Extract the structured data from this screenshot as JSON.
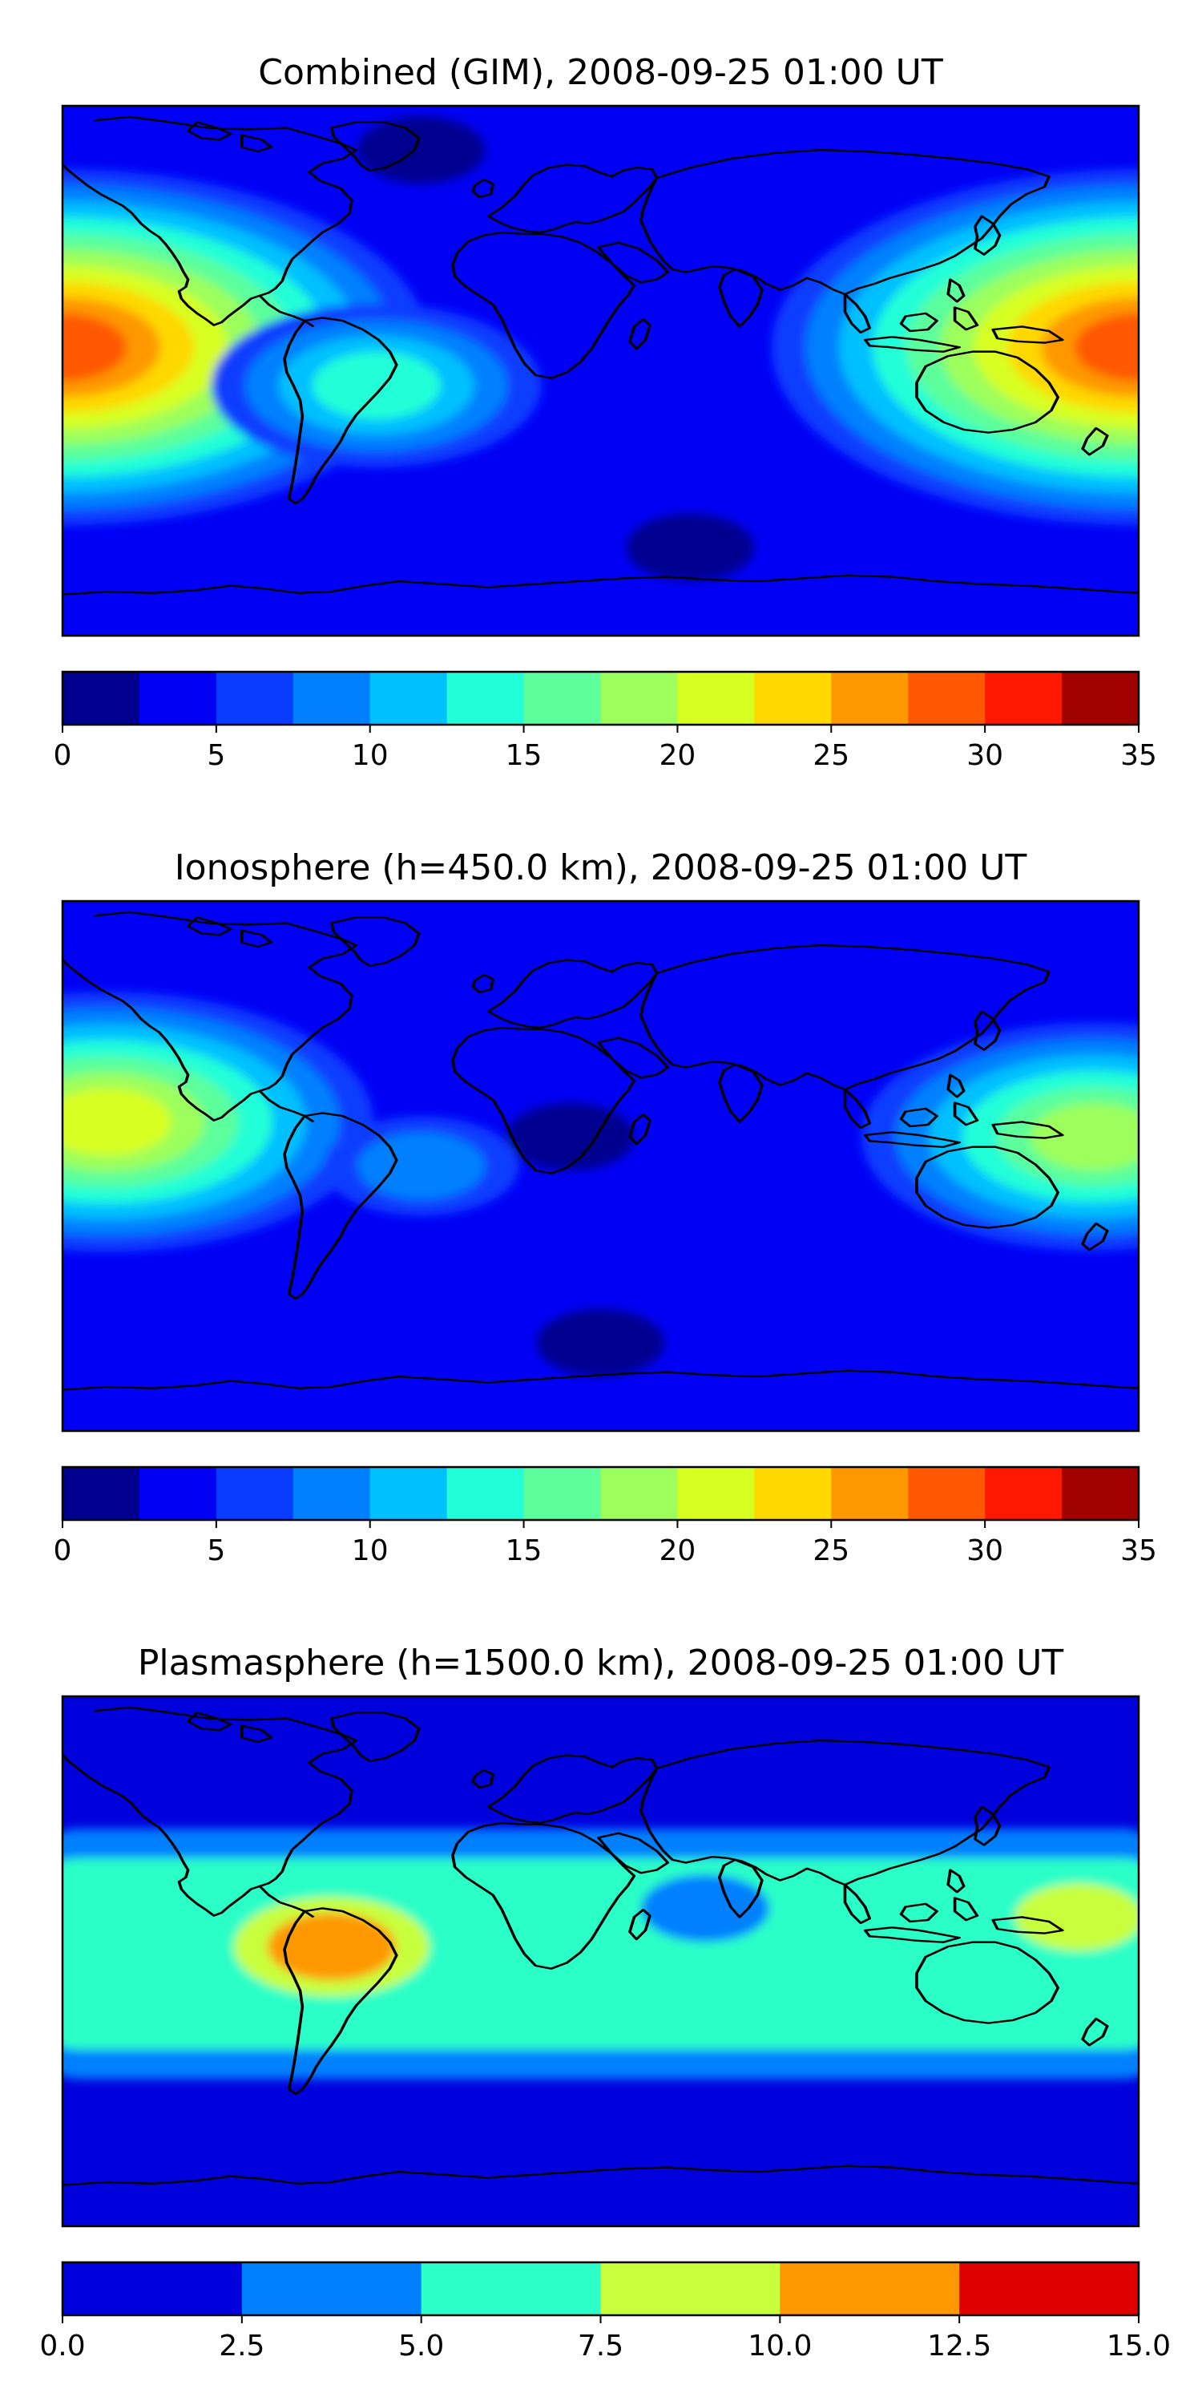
{
  "panels": [
    {
      "id": "combined",
      "title": "Combined (GIM), 2008-09-25 01:00 UT",
      "colorbar": {
        "ticks": [
          "0",
          "5",
          "10",
          "15",
          "20",
          "25",
          "30",
          "35"
        ],
        "tick_values": [
          0,
          5,
          10,
          15,
          20,
          25,
          30,
          35
        ],
        "range": [
          0,
          35
        ],
        "levels": [
          0,
          2.5,
          5,
          7.5,
          10,
          12.5,
          15,
          17.5,
          20,
          22.5,
          25,
          27.5,
          30,
          32.5,
          35
        ],
        "colors": [
          "#00008f",
          "#0000f5",
          "#0a3cff",
          "#0080ff",
          "#00c0ff",
          "#22ffd8",
          "#5cff9c",
          "#9cff5c",
          "#d8ff22",
          "#ffd800",
          "#ff9800",
          "#ff5800",
          "#ff1800",
          "#9f0000"
        ]
      },
      "field": {
        "background_level": 1,
        "blobs": [
          {
            "lon": -180,
            "lat": 8,
            "levels": [
              2,
              3,
              4,
              5,
              6,
              7,
              8,
              9,
              10,
              11
            ]
          },
          {
            "lon": 180,
            "lat": 8,
            "levels": [
              2,
              3,
              4,
              5,
              6,
              7,
              8,
              9,
              10,
              11
            ]
          },
          {
            "lon": -75,
            "lat": -5,
            "levels": [
              2,
              3,
              4,
              5
            ]
          },
          {
            "lon": 30,
            "lat": -60,
            "levels": [
              0
            ]
          },
          {
            "lon": -60,
            "lat": 75,
            "levels": [
              0
            ]
          }
        ]
      }
    },
    {
      "id": "ionosphere",
      "title": "Ionosphere  (h=450.0 km), 2008-09-25 01:00 UT",
      "colorbar": {
        "ticks": [
          "0",
          "5",
          "10",
          "15",
          "20",
          "25",
          "30",
          "35"
        ],
        "tick_values": [
          0,
          5,
          10,
          15,
          20,
          25,
          30,
          35
        ],
        "range": [
          0,
          35
        ],
        "levels": [
          0,
          2.5,
          5,
          7.5,
          10,
          12.5,
          15,
          17.5,
          20,
          22.5,
          25,
          27.5,
          30,
          32.5,
          35
        ],
        "colors": [
          "#00008f",
          "#0000f5",
          "#0a3cff",
          "#0080ff",
          "#00c0ff",
          "#22ffd8",
          "#5cff9c",
          "#9cff5c",
          "#d8ff22",
          "#ffd800",
          "#ff9800",
          "#ff5800",
          "#ff1800",
          "#9f0000"
        ]
      },
      "field": {
        "background_level": 1,
        "blobs": [
          {
            "lon": -10,
            "lat": 10,
            "levels": [
              0
            ]
          },
          {
            "lon": -165,
            "lat": 15,
            "levels": [
              2,
              3,
              4,
              5,
              6,
              7,
              8
            ]
          },
          {
            "lon": 165,
            "lat": 10,
            "levels": [
              2,
              3,
              4,
              5,
              6,
              7
            ]
          },
          {
            "lon": -60,
            "lat": 0,
            "levels": [
              2,
              3
            ]
          },
          {
            "lon": 0,
            "lat": -60,
            "levels": [
              0
            ]
          }
        ]
      }
    },
    {
      "id": "plasmasphere",
      "title": "Plasmasphere (h=1500.0 km), 2008-09-25 01:00 UT",
      "colorbar": {
        "ticks": [
          "0.0",
          "2.5",
          "5.0",
          "7.5",
          "10.0",
          "12.5",
          "15.0"
        ],
        "tick_values": [
          0,
          2.5,
          5,
          7.5,
          10,
          12.5,
          15
        ],
        "range": [
          0,
          15
        ],
        "levels": [
          0,
          2.5,
          5,
          7.5,
          10,
          12.5,
          15
        ],
        "colors": [
          "#0000dc",
          "#0080ff",
          "#2cffc8",
          "#c8ff3c",
          "#ff9800",
          "#df0000"
        ]
      },
      "field": {
        "background_level": 0,
        "bands": [
          {
            "level": 1,
            "lat_north": 45,
            "lat_south": -40
          },
          {
            "level": 2,
            "lat_north": 35,
            "lat_south": -30
          }
        ],
        "blobs": [
          {
            "lon": -90,
            "lat": 5,
            "levels": [
              3,
              4
            ]
          },
          {
            "lon": 160,
            "lat": 15,
            "levels": [
              3
            ]
          },
          {
            "lon": 35,
            "lat": 18,
            "levels": [
              1
            ]
          }
        ]
      }
    }
  ]
}
